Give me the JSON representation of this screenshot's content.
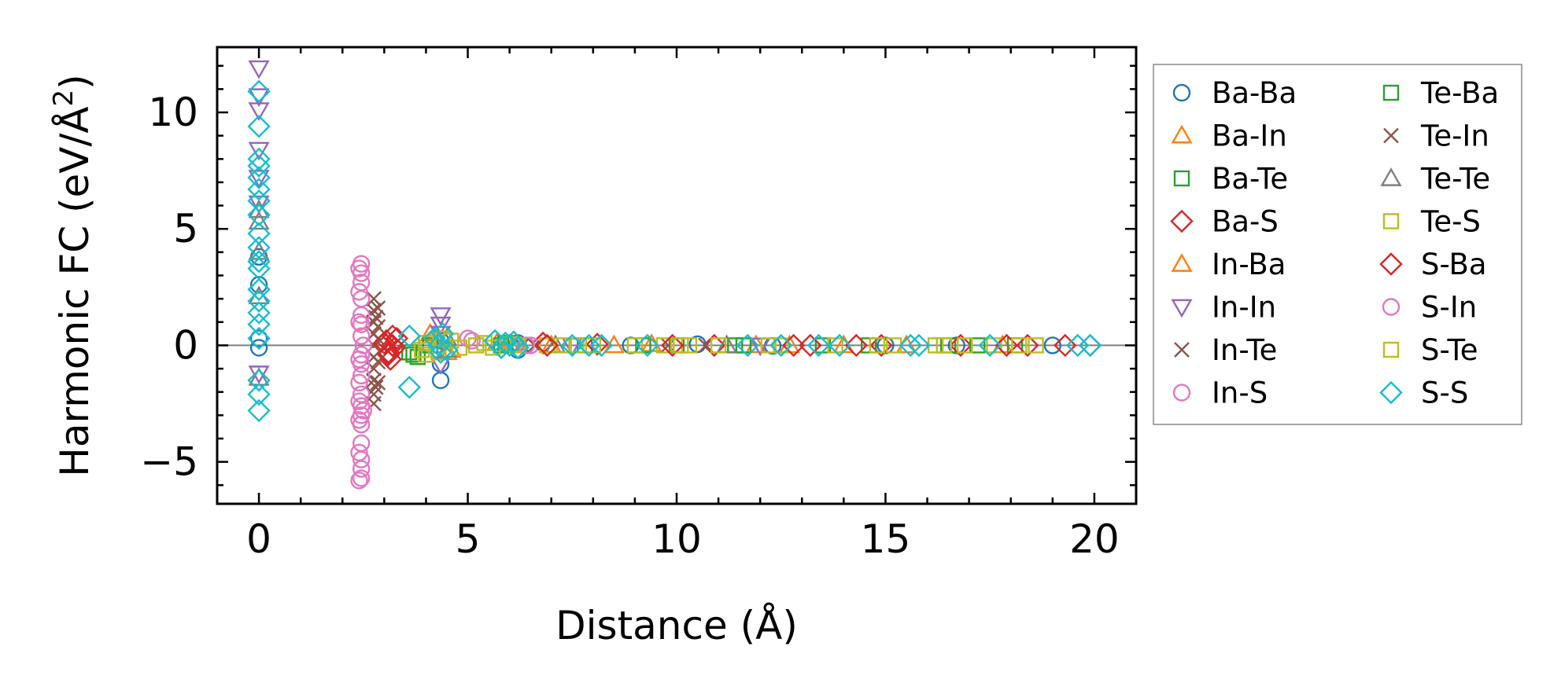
{
  "chart_data": {
    "type": "scatter",
    "xlabel": "Distance (Å)",
    "ylabel_parts": [
      "Harmonic FC (eV/Å",
      "2",
      ")"
    ],
    "xlim": [
      -1,
      21
    ],
    "ylim": [
      -6.8,
      12.8
    ],
    "xticks": [
      0,
      5,
      10,
      15,
      20
    ],
    "yticks": [
      -5,
      0,
      5,
      10
    ],
    "xtick_labels": [
      "0",
      "5",
      "10",
      "15",
      "20"
    ],
    "ytick_labels": [
      "−5",
      "0",
      "5",
      "10"
    ],
    "grid": false,
    "zero_line": true,
    "legend": {
      "position": "outside-right",
      "columns": 2
    },
    "series": [
      {
        "name": "Ba-Ba",
        "marker": "circle",
        "color": "#1f77b4",
        "points": [
          [
            0,
            3.8
          ],
          [
            0,
            2.6
          ],
          [
            0,
            -0.1
          ],
          [
            0,
            0.3
          ],
          [
            4.35,
            -1.5
          ],
          [
            4.35,
            -0.8
          ],
          [
            4.35,
            0.2
          ],
          [
            6.2,
            -0.2
          ],
          [
            6.2,
            0.1
          ],
          [
            8.9,
            0.0
          ],
          [
            10.5,
            0.05
          ],
          [
            12.3,
            -0.02
          ],
          [
            15.0,
            0.0
          ],
          [
            16.7,
            0.0
          ],
          [
            19.0,
            0.0
          ]
        ]
      },
      {
        "name": "Ba-In",
        "marker": "triangle-up",
        "color": "#ff7f0e",
        "points": [
          [
            4.1,
            0.5
          ],
          [
            4.3,
            0.2
          ],
          [
            4.5,
            -0.3
          ],
          [
            5.7,
            0.1
          ],
          [
            7.0,
            0.0
          ],
          [
            9.4,
            0.05
          ],
          [
            11.9,
            0.0
          ],
          [
            14.0,
            0.0
          ],
          [
            17.8,
            0.0
          ]
        ]
      },
      {
        "name": "Ba-Te",
        "marker": "square",
        "color": "#2ca02c",
        "points": [
          [
            3.6,
            -0.3
          ],
          [
            3.8,
            -0.5
          ],
          [
            4.0,
            0.1
          ],
          [
            5.9,
            0.1
          ],
          [
            7.8,
            0.0
          ],
          [
            10.0,
            0.0
          ],
          [
            11.6,
            0.0
          ],
          [
            13.5,
            0.0
          ],
          [
            16.5,
            0.0
          ],
          [
            18.1,
            0.0
          ]
        ]
      },
      {
        "name": "Ba-S",
        "marker": "diamond",
        "color": "#d62728",
        "points": [
          [
            3.05,
            0.2
          ],
          [
            3.1,
            -0.3
          ],
          [
            3.15,
            -0.6
          ],
          [
            3.2,
            0.0
          ],
          [
            3.3,
            0.3
          ],
          [
            6.8,
            0.1
          ],
          [
            8.1,
            0.05
          ],
          [
            10.9,
            0.0
          ],
          [
            13.2,
            0.0
          ],
          [
            14.9,
            0.0
          ],
          [
            16.8,
            0.0
          ],
          [
            18.4,
            0.0
          ],
          [
            19.9,
            0.0
          ]
        ]
      },
      {
        "name": "In-Ba",
        "marker": "triangle-up",
        "color": "#ff7f0e",
        "points": [
          [
            4.2,
            0.4
          ],
          [
            4.6,
            -0.2
          ],
          [
            6.0,
            0.05
          ],
          [
            8.5,
            0.0
          ],
          [
            12.7,
            0.0
          ],
          [
            15.5,
            0.0
          ]
        ]
      },
      {
        "name": "In-In",
        "marker": "triangle-down",
        "color": "#9467bd",
        "points": [
          [
            0,
            11.9
          ],
          [
            0,
            10.7
          ],
          [
            0,
            10.1
          ],
          [
            0,
            8.4
          ],
          [
            0,
            7.2
          ],
          [
            0,
            6.1
          ],
          [
            0,
            -1.2
          ],
          [
            4.35,
            1.3
          ],
          [
            4.35,
            0.9
          ],
          [
            4.35,
            0.5
          ],
          [
            4.35,
            -0.8
          ],
          [
            7.5,
            0.0
          ],
          [
            12.0,
            0.0
          ]
        ]
      },
      {
        "name": "In-Te",
        "marker": "cross",
        "color": "#8c564b",
        "points": [
          [
            2.75,
            2.0
          ],
          [
            2.75,
            1.5
          ],
          [
            2.75,
            1.0
          ],
          [
            2.75,
            0.5
          ],
          [
            2.75,
            0.0
          ],
          [
            2.75,
            -0.5
          ],
          [
            2.75,
            -1.0
          ],
          [
            2.75,
            -1.5
          ],
          [
            2.75,
            -2.1
          ],
          [
            2.75,
            -2.5
          ],
          [
            2.8,
            1.2
          ],
          [
            2.8,
            -1.8
          ],
          [
            6.3,
            0.0
          ],
          [
            9.8,
            0.0
          ]
        ]
      },
      {
        "name": "In-S",
        "marker": "circle",
        "color": "#e377c2",
        "points": [
          [
            2.45,
            3.5
          ],
          [
            2.45,
            3.1
          ],
          [
            2.45,
            2.7
          ],
          [
            2.45,
            2.0
          ],
          [
            2.45,
            1.3
          ],
          [
            2.45,
            0.9
          ],
          [
            2.45,
            0.4
          ],
          [
            2.45,
            -0.4
          ],
          [
            2.45,
            -0.8
          ],
          [
            2.45,
            -1.3
          ],
          [
            2.45,
            -2.1
          ],
          [
            2.45,
            -2.6
          ],
          [
            2.45,
            -3.0
          ],
          [
            2.45,
            -3.4
          ],
          [
            2.45,
            -4.2
          ],
          [
            2.45,
            -4.9
          ],
          [
            2.45,
            -5.3
          ],
          [
            2.45,
            -5.7
          ],
          [
            2.5,
            -2.8
          ],
          [
            2.5,
            0.0
          ],
          [
            5.0,
            0.3
          ],
          [
            6.5,
            0.0
          ]
        ]
      },
      {
        "name": "Te-Ba",
        "marker": "square",
        "color": "#2ca02c",
        "points": [
          [
            3.7,
            -0.4
          ],
          [
            4.1,
            0.0
          ],
          [
            5.8,
            0.0
          ],
          [
            9.2,
            0.0
          ],
          [
            11.4,
            0.0
          ],
          [
            14.6,
            0.0
          ],
          [
            17.2,
            0.0
          ]
        ]
      },
      {
        "name": "Te-In",
        "marker": "cross",
        "color": "#8c564b",
        "points": [
          [
            2.85,
            1.6
          ],
          [
            2.85,
            0.8
          ],
          [
            2.85,
            -0.7
          ],
          [
            2.85,
            -1.6
          ],
          [
            2.9,
            0.2
          ],
          [
            6.6,
            0.0
          ],
          [
            10.7,
            0.0
          ]
        ]
      },
      {
        "name": "Te-Te",
        "marker": "triangle-up",
        "color": "#7f7f7f",
        "points": [
          [
            0,
            5.8
          ],
          [
            0,
            5.3
          ],
          [
            0,
            4.0
          ],
          [
            0,
            2.1
          ],
          [
            0,
            -1.4
          ],
          [
            4.5,
            0.3
          ],
          [
            4.5,
            -0.2
          ],
          [
            7.1,
            0.0
          ],
          [
            11.2,
            0.0
          ]
        ]
      },
      {
        "name": "Te-S",
        "marker": "square",
        "color": "#bcbd22",
        "points": [
          [
            3.9,
            -0.2
          ],
          [
            4.0,
            0.1
          ],
          [
            4.3,
            -0.3
          ],
          [
            4.6,
            0.2
          ],
          [
            5.2,
            0.0
          ],
          [
            5.6,
            -0.1
          ],
          [
            6.1,
            0.05
          ],
          [
            6.9,
            0.0
          ],
          [
            7.3,
            0.0
          ],
          [
            8.0,
            0.0
          ],
          [
            9.0,
            0.0
          ],
          [
            9.7,
            0.0
          ],
          [
            10.3,
            0.0
          ],
          [
            11.0,
            0.0
          ],
          [
            12.5,
            0.0
          ],
          [
            13.8,
            0.0
          ],
          [
            15.2,
            0.0
          ],
          [
            16.2,
            0.0
          ],
          [
            16.9,
            0.0
          ],
          [
            17.6,
            0.0
          ],
          [
            18.6,
            0.0
          ]
        ]
      },
      {
        "name": "S-Ba",
        "marker": "diamond",
        "color": "#d62728",
        "points": [
          [
            3.0,
            0.1
          ],
          [
            3.1,
            -0.4
          ],
          [
            3.2,
            0.4
          ],
          [
            3.25,
            -0.1
          ],
          [
            6.9,
            0.0
          ],
          [
            9.9,
            0.0
          ],
          [
            12.8,
            0.0
          ],
          [
            14.3,
            0.0
          ],
          [
            17.9,
            0.0
          ],
          [
            19.3,
            0.0
          ]
        ]
      },
      {
        "name": "S-In",
        "marker": "circle",
        "color": "#e377c2",
        "points": [
          [
            2.4,
            3.3
          ],
          [
            2.4,
            2.3
          ],
          [
            2.4,
            1.0
          ],
          [
            2.4,
            -0.6
          ],
          [
            2.4,
            -1.6
          ],
          [
            2.4,
            -2.4
          ],
          [
            2.4,
            -3.2
          ],
          [
            2.4,
            -4.6
          ],
          [
            2.4,
            -5.8
          ],
          [
            5.1,
            0.2
          ],
          [
            6.4,
            0.0
          ]
        ]
      },
      {
        "name": "S-Te",
        "marker": "square",
        "color": "#bcbd22",
        "points": [
          [
            4.0,
            -0.4
          ],
          [
            4.4,
            0.3
          ],
          [
            4.8,
            -0.1
          ],
          [
            5.4,
            0.1
          ],
          [
            6.2,
            0.0
          ],
          [
            7.6,
            0.0
          ],
          [
            10.1,
            0.0
          ],
          [
            12.2,
            0.0
          ],
          [
            14.8,
            0.0
          ],
          [
            16.4,
            0.0
          ],
          [
            18.2,
            0.0
          ]
        ]
      },
      {
        "name": "S-S",
        "marker": "diamond",
        "color": "#17becf",
        "points": [
          [
            0,
            10.9
          ],
          [
            0,
            9.4
          ],
          [
            0,
            8.0
          ],
          [
            0,
            7.7
          ],
          [
            0,
            7.2
          ],
          [
            0,
            6.7
          ],
          [
            0,
            6.2
          ],
          [
            0,
            5.6
          ],
          [
            0,
            4.8
          ],
          [
            0,
            4.2
          ],
          [
            0,
            3.6
          ],
          [
            0,
            3.3
          ],
          [
            0,
            2.4
          ],
          [
            0,
            1.9
          ],
          [
            0,
            1.4
          ],
          [
            0,
            0.9
          ],
          [
            0,
            0.3
          ],
          [
            0,
            -1.5
          ],
          [
            0,
            -2.1
          ],
          [
            0,
            -2.8
          ],
          [
            3.6,
            -1.8
          ],
          [
            3.6,
            0.4
          ],
          [
            4.2,
            0.3
          ],
          [
            4.3,
            0.0
          ],
          [
            4.35,
            -0.3
          ],
          [
            4.4,
            0.5
          ],
          [
            4.5,
            -0.2
          ],
          [
            5.65,
            0.2
          ],
          [
            5.8,
            -0.1
          ],
          [
            5.9,
            0.1
          ],
          [
            6.0,
            0.0
          ],
          [
            6.1,
            0.15
          ],
          [
            6.2,
            -0.1
          ],
          [
            7.5,
            0.0
          ],
          [
            7.9,
            0.0
          ],
          [
            8.2,
            0.0
          ],
          [
            9.3,
            0.0
          ],
          [
            11.7,
            0.0
          ],
          [
            12.5,
            0.0
          ],
          [
            13.4,
            0.0
          ],
          [
            13.9,
            0.0
          ],
          [
            15.6,
            0.0
          ],
          [
            15.8,
            0.0
          ],
          [
            17.5,
            0.0
          ],
          [
            19.6,
            0.0
          ],
          [
            19.9,
            0.0
          ]
        ]
      }
    ]
  }
}
